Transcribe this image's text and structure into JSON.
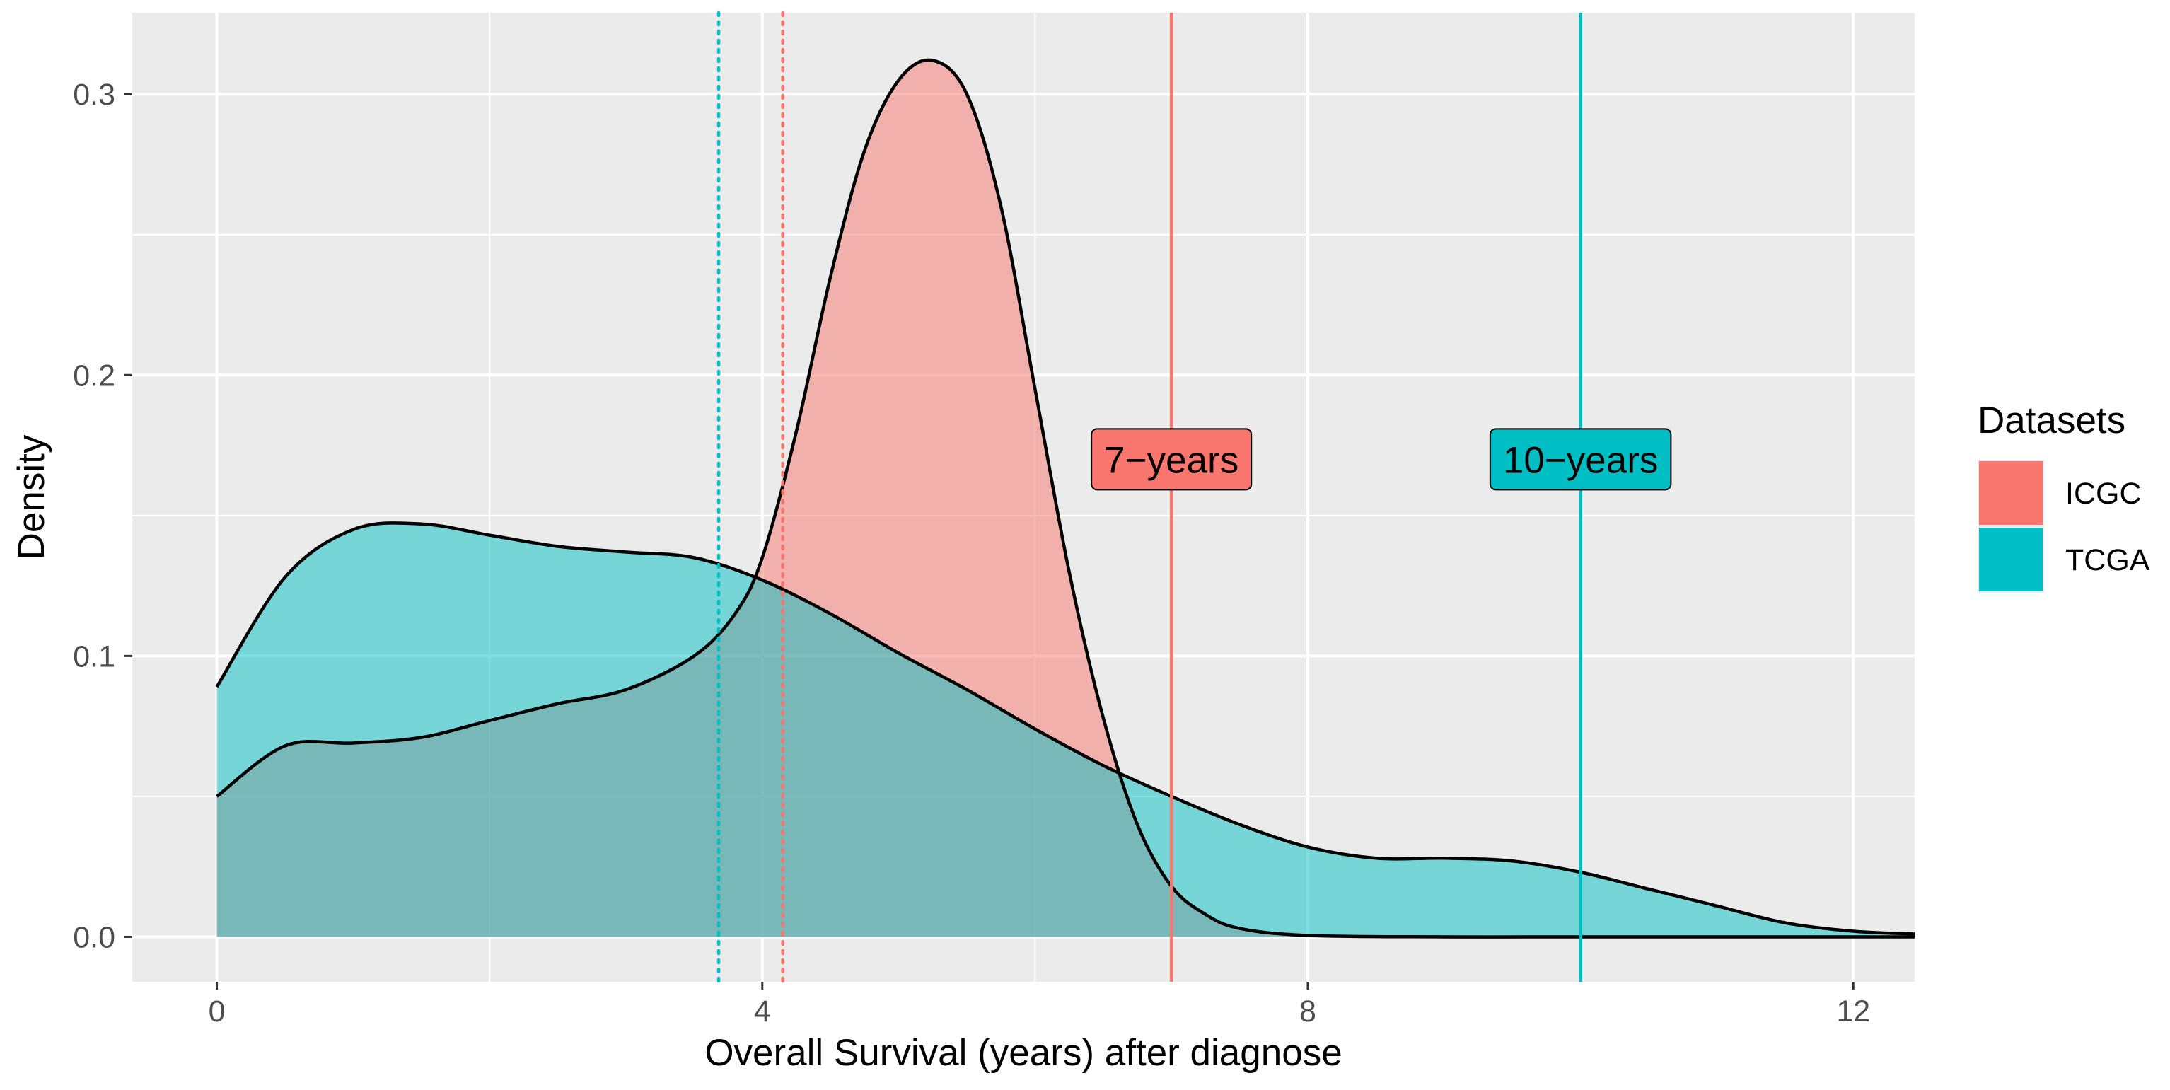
{
  "chart_data": {
    "type": "area",
    "title": "",
    "xlabel": "Overall Survival (years) after diagnose",
    "ylabel": "Density",
    "xlim": [
      -0.62,
      12.45
    ],
    "ylim": [
      -0.016,
      0.329
    ],
    "x_ticks": [
      0,
      4,
      8,
      12
    ],
    "x_tick_labels": [
      "0",
      "4",
      "8",
      "12"
    ],
    "y_ticks": [
      0.0,
      0.1,
      0.2,
      0.3
    ],
    "y_tick_labels": [
      "0.0",
      "0.1",
      "0.2",
      "0.3"
    ],
    "grid": true,
    "panel_background": "#ebebeb",
    "legend": {
      "title": "Datasets",
      "placement": "right",
      "entries": [
        {
          "label": "ICGC",
          "color": "#f8766d"
        },
        {
          "label": "TCGA",
          "color": "#00bfc4"
        }
      ]
    },
    "series": [
      {
        "name": "ICGC",
        "color": "#f8766d",
        "x": [
          0,
          0.5,
          1,
          1.5,
          2,
          2.5,
          3,
          3.5,
          3.8,
          4,
          4.25,
          4.5,
          4.75,
          5,
          5.25,
          5.5,
          5.75,
          6,
          6.25,
          6.5,
          6.75,
          7,
          7.25,
          7.5,
          8,
          9,
          10,
          11,
          12,
          12.45
        ],
        "y": [
          0.05,
          0.068,
          0.069,
          0.071,
          0.077,
          0.083,
          0.088,
          0.1,
          0.115,
          0.135,
          0.18,
          0.235,
          0.28,
          0.305,
          0.312,
          0.3,
          0.26,
          0.195,
          0.13,
          0.078,
          0.04,
          0.018,
          0.008,
          0.003,
          0.0005,
          0.0,
          0.0,
          0.0,
          0.0,
          0.0
        ]
      },
      {
        "name": "TCGA",
        "color": "#00bfc4",
        "x": [
          0,
          0.5,
          1,
          1.5,
          2,
          2.5,
          3,
          3.5,
          4,
          4.5,
          5,
          5.5,
          6,
          6.5,
          7,
          7.5,
          8,
          8.5,
          9,
          9.5,
          10,
          10.5,
          11,
          11.5,
          12,
          12.45
        ],
        "y": [
          0.089,
          0.128,
          0.145,
          0.147,
          0.143,
          0.139,
          0.137,
          0.135,
          0.127,
          0.115,
          0.101,
          0.088,
          0.074,
          0.061,
          0.05,
          0.04,
          0.032,
          0.028,
          0.028,
          0.027,
          0.023,
          0.017,
          0.011,
          0.005,
          0.002,
          0.001
        ]
      }
    ],
    "vlines": [
      {
        "x": 3.68,
        "color": "#00bfc4",
        "style": "dotted"
      },
      {
        "x": 4.15,
        "color": "#f8766d",
        "style": "dotted"
      },
      {
        "x": 7.0,
        "color": "#f8766d",
        "style": "solid"
      },
      {
        "x": 10.0,
        "color": "#00bfc4",
        "style": "solid"
      }
    ],
    "annotations": [
      {
        "text": "7−years",
        "x": 7.0,
        "y": 0.17,
        "fill": "#f8766d"
      },
      {
        "text": "10−years",
        "x": 10.0,
        "y": 0.17,
        "fill": "#00bfc4"
      }
    ]
  }
}
